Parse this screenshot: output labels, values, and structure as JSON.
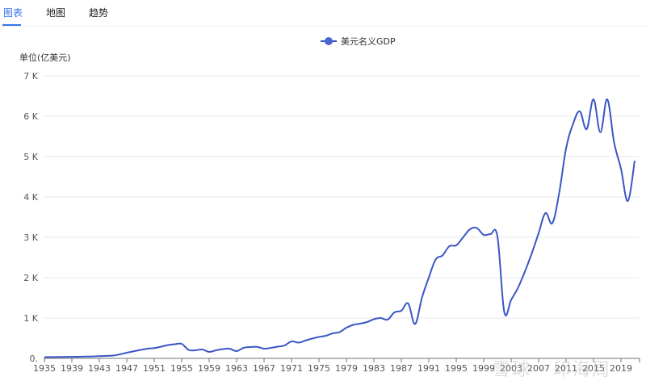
{
  "tabs": [
    {
      "label": "图表",
      "active": true
    },
    {
      "label": "地图",
      "active": false
    },
    {
      "label": "趋势",
      "active": false
    }
  ],
  "legend": {
    "label": "美元名义GDP",
    "color": "#3a56c4"
  },
  "unit_label": "单位(亿美元)",
  "watermark": "雪球 · 印海周",
  "chart_data": {
    "type": "line",
    "title": "",
    "xlabel": "",
    "ylabel": "单位(亿美元)",
    "ylim": [
      0,
      7000
    ],
    "grid": true,
    "legend_position": "top-center",
    "y_ticks": [
      "0.",
      "1 K",
      "2 K",
      "3 K",
      "4 K",
      "5 K",
      "6 K",
      "7 K"
    ],
    "x_ticks": [
      "1935",
      "1939",
      "1943",
      "1947",
      "1951",
      "1955",
      "1959",
      "1963",
      "1967",
      "1971",
      "1975",
      "1979",
      "1983",
      "1987",
      "1991",
      "1995",
      "1999",
      "2003",
      "2007",
      "2011",
      "2015",
      "2019"
    ],
    "series": [
      {
        "name": "美元名义GDP",
        "color": "#3a56c4",
        "x": [
          1935,
          1936,
          1937,
          1938,
          1939,
          1940,
          1941,
          1942,
          1943,
          1944,
          1945,
          1946,
          1947,
          1948,
          1949,
          1950,
          1951,
          1952,
          1953,
          1954,
          1955,
          1956,
          1957,
          1958,
          1959,
          1960,
          1961,
          1962,
          1963,
          1964,
          1965,
          1966,
          1967,
          1968,
          1969,
          1970,
          1971,
          1972,
          1973,
          1974,
          1975,
          1976,
          1977,
          1978,
          1979,
          1980,
          1981,
          1982,
          1983,
          1984,
          1985,
          1986,
          1987,
          1988,
          1989,
          1990,
          1991,
          1992,
          1993,
          1994,
          1995,
          1996,
          1997,
          1998,
          1999,
          2000,
          2001,
          2002,
          2003,
          2004,
          2005,
          2006,
          2007,
          2008,
          2009,
          2010,
          2011,
          2012,
          2013,
          2014,
          2015,
          2016,
          2017,
          2018,
          2019,
          2020,
          2021
        ],
        "values": [
          30,
          32,
          34,
          36,
          38,
          40,
          44,
          48,
          55,
          62,
          70,
          100,
          140,
          175,
          210,
          240,
          255,
          290,
          330,
          350,
          360,
          210,
          200,
          220,
          160,
          200,
          230,
          240,
          180,
          260,
          280,
          285,
          240,
          260,
          290,
          320,
          420,
          390,
          440,
          490,
          530,
          560,
          620,
          650,
          760,
          830,
          860,
          900,
          970,
          1000,
          960,
          1140,
          1180,
          1360,
          850,
          1500,
          2000,
          2450,
          2550,
          2780,
          2800,
          3000,
          3200,
          3230,
          3060,
          3080,
          3020,
          1150,
          1450,
          1750,
          2150,
          2600,
          3100,
          3600,
          3350,
          4100,
          5200,
          5800,
          6120,
          5680,
          6420,
          5600,
          6420,
          5350,
          4700,
          3900,
          4900
        ]
      }
    ]
  }
}
